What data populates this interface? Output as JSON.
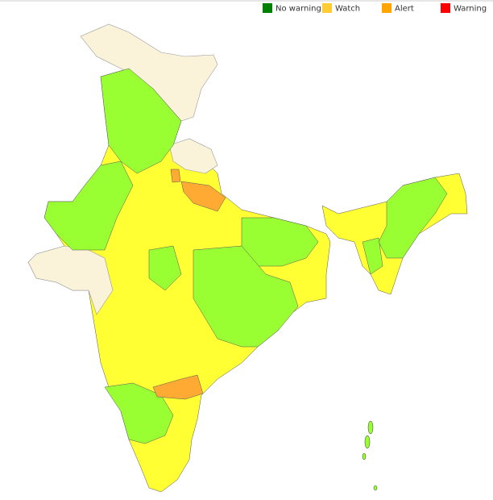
{
  "legend": [
    {
      "label": "No warning",
      "color": "#008000"
    },
    {
      "label": "Watch",
      "color": "#ffcc33"
    },
    {
      "label": "Alert",
      "color": "#ffa500"
    },
    {
      "label": "Warning",
      "color": "#ff0000"
    }
  ]
}
